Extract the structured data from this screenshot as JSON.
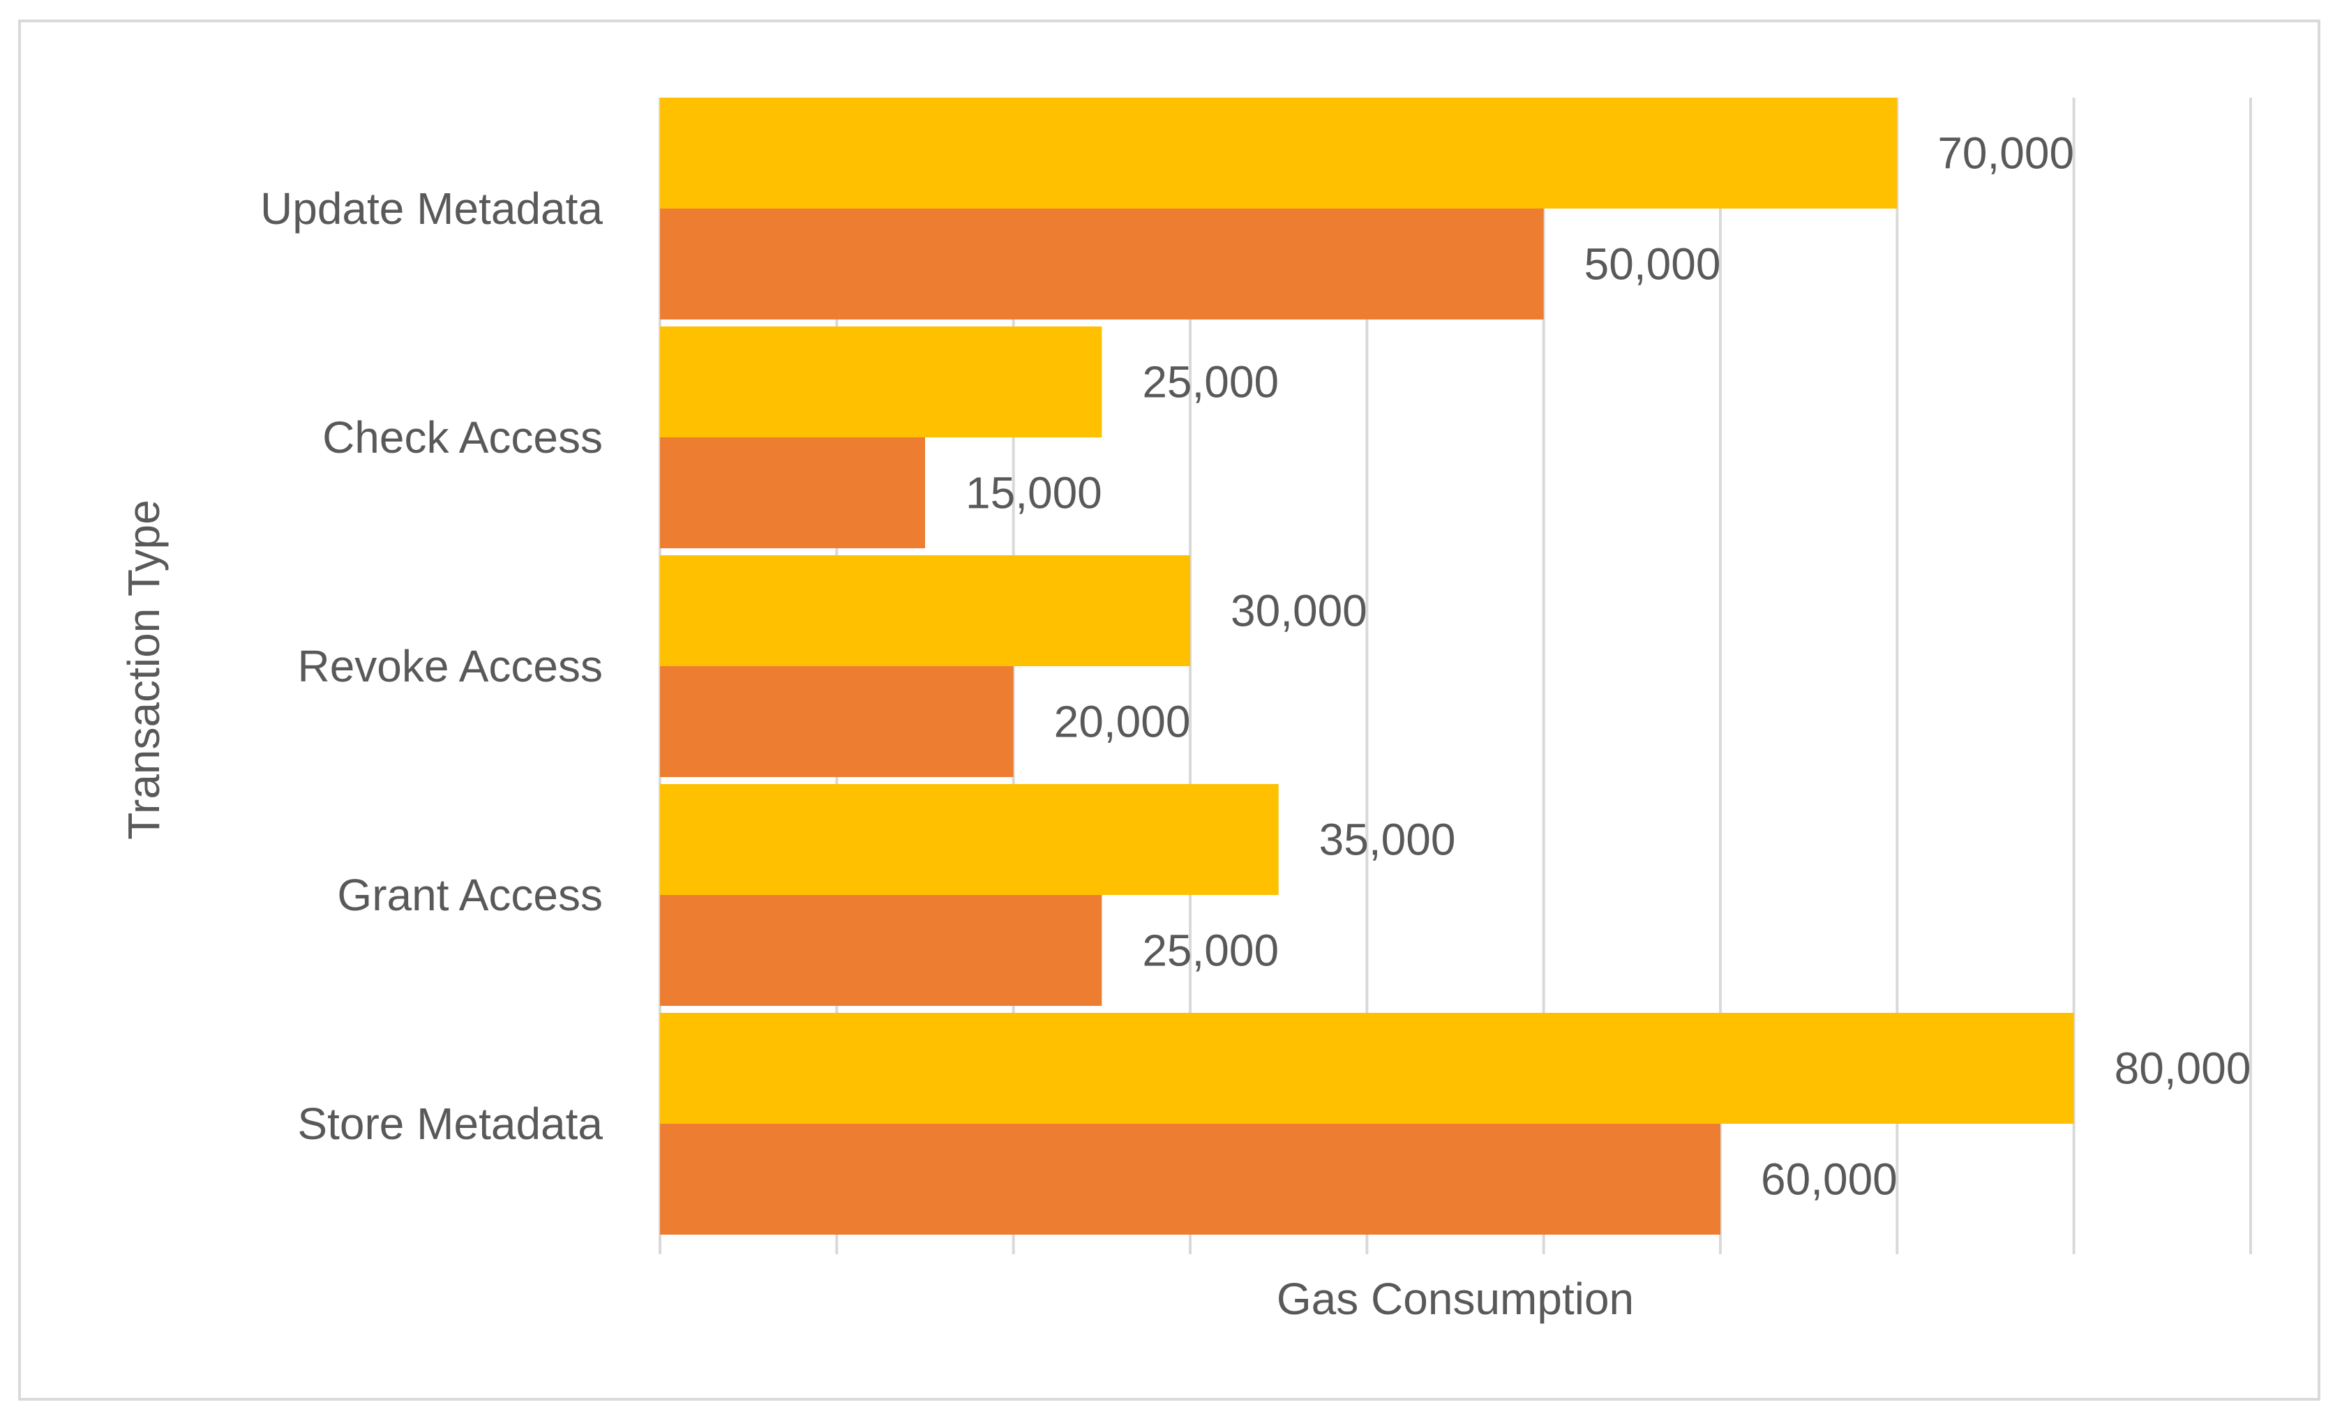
{
  "chart_data": {
    "type": "bar",
    "orientation": "horizontal",
    "categories": [
      "Update Metadata",
      "Check Access",
      "Revoke Access",
      "Grant Access",
      "Store Metadata"
    ],
    "series": [
      {
        "values": [
          70000,
          25000,
          30000,
          35000,
          80000
        ],
        "color": "#FFC000"
      },
      {
        "values": [
          50000,
          15000,
          20000,
          25000,
          60000
        ],
        "color": "#ED7D31"
      }
    ],
    "data_labels": [
      [
        "70,000",
        "25,000",
        "30,000",
        "35,000",
        "80,000"
      ],
      [
        "50,000",
        "15,000",
        "20,000",
        "25,000",
        "60,000"
      ]
    ],
    "xlabel": "Gas Consumption",
    "ylabel": "Transaction Type",
    "xlim": [
      0,
      90000
    ],
    "grid": "vertical",
    "legend": "none"
  }
}
